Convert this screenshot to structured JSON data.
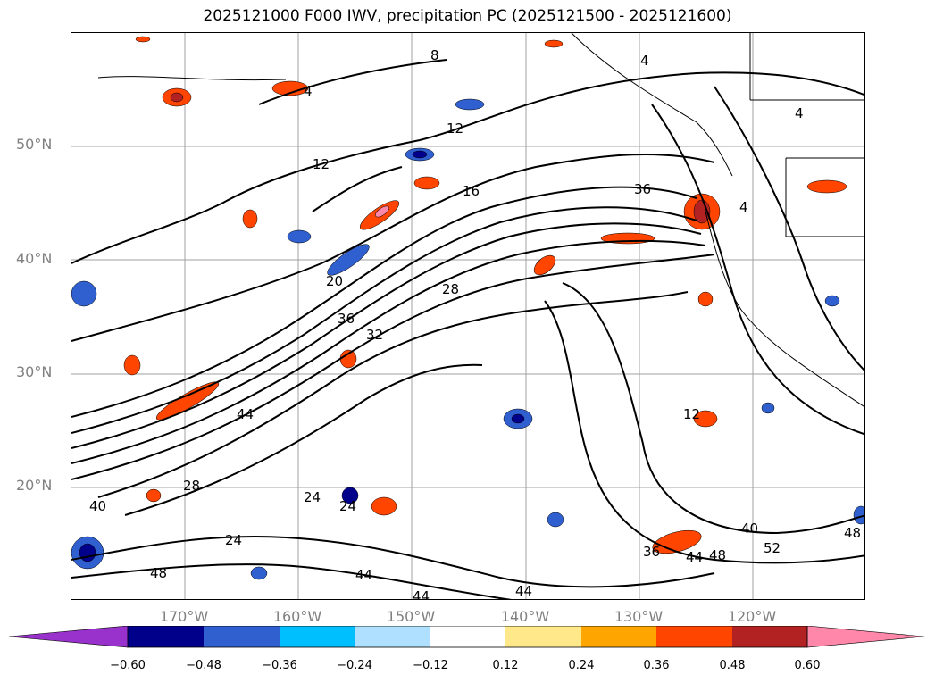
{
  "title": "2025121000 F000 IWV, precipitation PC (2025121500 - 2025121600)",
  "lat_labels": [
    {
      "label": "50°N",
      "lat": 50
    },
    {
      "label": "40°N",
      "lat": 40
    },
    {
      "label": "30°N",
      "lat": 30
    },
    {
      "label": "20°N",
      "lat": 20
    }
  ],
  "lon_labels": [
    {
      "label": "170°W",
      "lon": -170
    },
    {
      "label": "160°W",
      "lon": -160
    },
    {
      "label": "150°W",
      "lon": -150
    },
    {
      "label": "140°W",
      "lon": -140
    },
    {
      "label": "130°W",
      "lon": -130
    },
    {
      "label": "120°W",
      "lon": -120
    }
  ],
  "map_extent": {
    "lon": [
      -180,
      -110
    ],
    "lat": [
      10,
      60
    ]
  },
  "contour_labels": [
    "4",
    "8",
    "12",
    "16",
    "20",
    "24",
    "28",
    "32",
    "36",
    "40",
    "44",
    "48",
    "52"
  ],
  "colorbar": {
    "ticks": [
      "−0.60",
      "−0.48",
      "−0.36",
      "−0.24",
      "−0.12",
      "0.12",
      "0.24",
      "0.36",
      "0.48",
      "0.60"
    ],
    "colors": [
      "#9932cc",
      "#00008b",
      "#3060d0",
      "#00bfff",
      "#b0e0ff",
      "#ffffff",
      "#ffe88a",
      "#ffa500",
      "#ff4500",
      "#b22222",
      "#ff88aa"
    ],
    "extend": "both"
  },
  "colors": {
    "contour": "#000000",
    "grid": "#a0a0a0",
    "frame": "#000000"
  }
}
